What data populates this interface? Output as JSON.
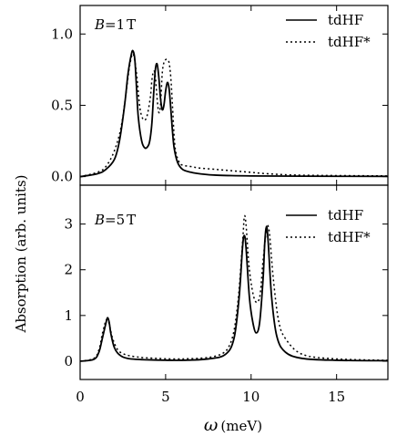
{
  "chart_data": [
    {
      "type": "line",
      "panel_label": {
        "var": "B",
        "eq": "=",
        "value": "1",
        "unit": "T"
      },
      "xlim": [
        0,
        18
      ],
      "ylim": [
        -0.06,
        1.2
      ],
      "xticks": [
        0,
        5,
        10,
        15
      ],
      "yticks": [
        0.0,
        0.5,
        1.0
      ],
      "ytick_labels": [
        "0.0",
        "0.5",
        "1.0"
      ],
      "legend_position": "top-right",
      "grid": false,
      "series": [
        {
          "name": "tdHF",
          "style": "solid",
          "x": [
            0,
            1,
            1.5,
            2,
            2.3,
            2.6,
            2.8,
            3.0,
            3.1,
            3.2,
            3.3,
            3.4,
            3.6,
            3.8,
            4.0,
            4.1,
            4.2,
            4.3,
            4.4,
            4.5,
            4.6,
            4.7,
            4.8,
            4.9,
            5.0,
            5.1,
            5.2,
            5.3,
            5.4,
            5.5,
            5.7,
            6.0,
            6.5,
            7,
            8,
            10,
            13,
            18
          ],
          "y": [
            0.0,
            0.02,
            0.05,
            0.12,
            0.25,
            0.5,
            0.72,
            0.86,
            0.88,
            0.82,
            0.62,
            0.42,
            0.25,
            0.2,
            0.22,
            0.27,
            0.38,
            0.58,
            0.75,
            0.79,
            0.7,
            0.55,
            0.47,
            0.5,
            0.6,
            0.66,
            0.62,
            0.48,
            0.32,
            0.2,
            0.1,
            0.05,
            0.03,
            0.02,
            0.01,
            0.005,
            0.003,
            0.002
          ]
        },
        {
          "name": "tdHF*",
          "style": "dotted",
          "x": [
            0,
            1,
            1.5,
            2,
            2.4,
            2.7,
            2.9,
            3.1,
            3.3,
            3.5,
            3.7,
            3.9,
            4.1,
            4.2,
            4.3,
            4.4,
            4.5,
            4.6,
            4.7,
            4.8,
            4.9,
            5.0,
            5.1,
            5.2,
            5.3,
            5.4,
            5.5,
            5.6,
            5.8,
            6.0,
            6.5,
            7.0,
            8.0,
            9.0,
            10,
            11,
            13,
            18
          ],
          "y": [
            0.0,
            0.03,
            0.07,
            0.18,
            0.35,
            0.6,
            0.78,
            0.86,
            0.72,
            0.48,
            0.4,
            0.42,
            0.55,
            0.68,
            0.74,
            0.7,
            0.55,
            0.45,
            0.5,
            0.72,
            0.8,
            0.82,
            0.82,
            0.8,
            0.7,
            0.5,
            0.28,
            0.17,
            0.1,
            0.08,
            0.07,
            0.06,
            0.05,
            0.04,
            0.03,
            0.02,
            0.01,
            0.005
          ]
        }
      ]
    },
    {
      "type": "line",
      "panel_label": {
        "var": "B",
        "eq": "=",
        "value": "5",
        "unit": "T"
      },
      "xlim": [
        0,
        18
      ],
      "ylim": [
        -0.4,
        3.85
      ],
      "xticks": [
        0,
        5,
        10,
        15
      ],
      "yticks": [
        0,
        1,
        2,
        3
      ],
      "ytick_labels": [
        "0",
        "1",
        "2",
        "3"
      ],
      "xlabel": {
        "symbol": "ω",
        "unit": "(meV)"
      },
      "legend_position": "top-right",
      "grid": false,
      "series": [
        {
          "name": "tdHF",
          "style": "solid",
          "x": [
            0,
            0.8,
            1.1,
            1.3,
            1.5,
            1.6,
            1.7,
            1.8,
            2.0,
            2.3,
            2.8,
            4,
            6,
            7.5,
            8.5,
            9.0,
            9.3,
            9.5,
            9.6,
            9.7,
            9.9,
            10.1,
            10.3,
            10.5,
            10.7,
            10.8,
            10.9,
            11.0,
            11.2,
            11.5,
            12,
            13,
            15,
            18
          ],
          "y": [
            0.0,
            0.04,
            0.2,
            0.5,
            0.82,
            0.95,
            0.85,
            0.6,
            0.3,
            0.14,
            0.06,
            0.03,
            0.02,
            0.05,
            0.15,
            0.5,
            1.4,
            2.5,
            2.75,
            2.5,
            1.4,
            0.85,
            0.62,
            0.85,
            1.8,
            2.6,
            2.95,
            2.6,
            1.4,
            0.55,
            0.2,
            0.06,
            0.02,
            0.01
          ]
        },
        {
          "name": "tdHF*",
          "style": "dotted",
          "x": [
            0,
            0.8,
            1.1,
            1.3,
            1.5,
            1.6,
            1.7,
            1.9,
            2.2,
            2.6,
            3.2,
            4,
            6,
            8,
            8.8,
            9.2,
            9.5,
            9.6,
            9.7,
            9.9,
            10.2,
            10.5,
            10.7,
            10.9,
            11.0,
            11.1,
            11.3,
            11.6,
            12.0,
            13,
            15,
            18
          ],
          "y": [
            0.0,
            0.06,
            0.25,
            0.6,
            0.88,
            0.9,
            0.82,
            0.5,
            0.25,
            0.15,
            0.1,
            0.07,
            0.05,
            0.12,
            0.4,
            1.2,
            2.6,
            3.15,
            3.0,
            2.0,
            1.35,
            1.4,
            2.2,
            2.9,
            2.95,
            2.7,
            1.8,
            0.9,
            0.5,
            0.15,
            0.05,
            0.02
          ]
        }
      ]
    }
  ],
  "axis_labels": {
    "ylabel": "Absorption (arb. units)"
  }
}
